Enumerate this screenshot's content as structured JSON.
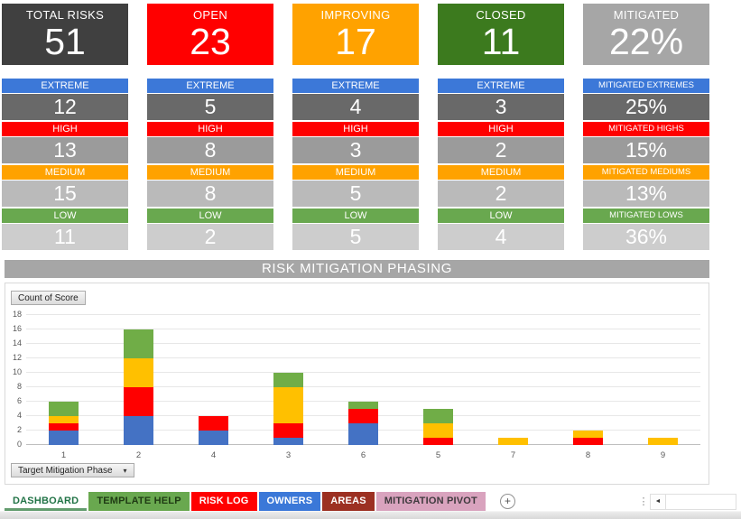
{
  "kpi": {
    "columns": [
      {
        "title": "TOTAL RISKS",
        "value": "51",
        "color": "#404040",
        "rows": [
          {
            "label": "EXTREME",
            "value": "12"
          },
          {
            "label": "HIGH",
            "value": "13"
          },
          {
            "label": "MEDIUM",
            "value": "15"
          },
          {
            "label": "LOW",
            "value": "11"
          }
        ]
      },
      {
        "title": "OPEN",
        "value": "23",
        "color": "#FF0000",
        "rows": [
          {
            "label": "EXTREME",
            "value": "5"
          },
          {
            "label": "HIGH",
            "value": "8"
          },
          {
            "label": "MEDIUM",
            "value": "8"
          },
          {
            "label": "LOW",
            "value": "2"
          }
        ]
      },
      {
        "title": "IMPROVING",
        "value": "17",
        "color": "#FFA200",
        "rows": [
          {
            "label": "EXTREME",
            "value": "4"
          },
          {
            "label": "HIGH",
            "value": "3"
          },
          {
            "label": "MEDIUM",
            "value": "5"
          },
          {
            "label": "LOW",
            "value": "5"
          }
        ]
      },
      {
        "title": "CLOSED",
        "value": "11",
        "color": "#3C7A1E",
        "rows": [
          {
            "label": "EXTREME",
            "value": "3"
          },
          {
            "label": "HIGH",
            "value": "2"
          },
          {
            "label": "MEDIUM",
            "value": "2"
          },
          {
            "label": "LOW",
            "value": "4"
          }
        ]
      },
      {
        "title": "MITIGATED",
        "value": "22%",
        "color": "#A6A6A6",
        "rows": [
          {
            "label": "MITIGATED EXTREMES",
            "value": "25%"
          },
          {
            "label": "MITIGATED HIGHS",
            "value": "15%"
          },
          {
            "label": "MITIGATED MEDIUMS",
            "value": "13%"
          },
          {
            "label": "MITIGATED LOWS",
            "value": "36%"
          }
        ]
      }
    ],
    "row_colors": [
      "#3C78D8",
      "#FF0000",
      "#FFA200",
      "#69A84F"
    ],
    "value_bgs": [
      "#696969",
      "#9B9B9B",
      "#BABABA",
      "#CDCDCD"
    ]
  },
  "section": {
    "title": "RISK MITIGATION PHASING",
    "bg": "#A6A6A6"
  },
  "chart": {
    "field_button": "Count of Score",
    "axis_button": "Target Mitigation Phase"
  },
  "chart_data": {
    "type": "bar",
    "stacked": true,
    "title": "Risk Mitigation Phasing",
    "xlabel": "Target Mitigation Phase",
    "ylabel": "Count of Score",
    "categories": [
      "1",
      "2",
      "4",
      "3",
      "6",
      "5",
      "7",
      "8",
      "9"
    ],
    "series": [
      {
        "name": "blue",
        "color": "#4472C4",
        "values": [
          2,
          4,
          2,
          1,
          3,
          0,
          0,
          0,
          0
        ]
      },
      {
        "name": "red",
        "color": "#FF0000",
        "values": [
          1,
          4,
          2,
          2,
          2,
          1,
          0,
          1,
          0
        ]
      },
      {
        "name": "yellow",
        "color": "#FFC000",
        "values": [
          1,
          4,
          0,
          5,
          0,
          2,
          1,
          1,
          1
        ]
      },
      {
        "name": "green",
        "color": "#70AD47",
        "values": [
          2,
          4,
          0,
          2,
          1,
          2,
          0,
          0,
          0
        ]
      }
    ],
    "totals": [
      6,
      16,
      4,
      10,
      6,
      5,
      1,
      2,
      1
    ],
    "ylim": [
      0,
      18
    ],
    "ytick_step": 2,
    "grid": true,
    "legend": "none"
  },
  "sheet_tabs": {
    "active": "DASHBOARD",
    "active_underline": "#639C6E",
    "items": [
      {
        "label": "DASHBOARD",
        "bg": "#FFFFFF",
        "text": "#217346",
        "active": true
      },
      {
        "label": "TEMPLATE HELP",
        "bg": "#69A84F",
        "text": "#1F3B14",
        "active": false
      },
      {
        "label": "RISK LOG",
        "bg": "#FF0000",
        "text": "#FFFFFF",
        "active": false
      },
      {
        "label": "OWNERS",
        "bg": "#3B78D8",
        "text": "#FFFFFF",
        "active": false
      },
      {
        "label": "AREAS",
        "bg": "#9C3022",
        "text": "#FFFFFF",
        "active": false
      },
      {
        "label": "MITIGATION PIVOT",
        "bg": "#D9A3BE",
        "text": "#3F3A3E",
        "active": false
      }
    ]
  },
  "icons": {
    "chevron_down": "▾",
    "plus": "+",
    "scroll_left": "◄"
  }
}
